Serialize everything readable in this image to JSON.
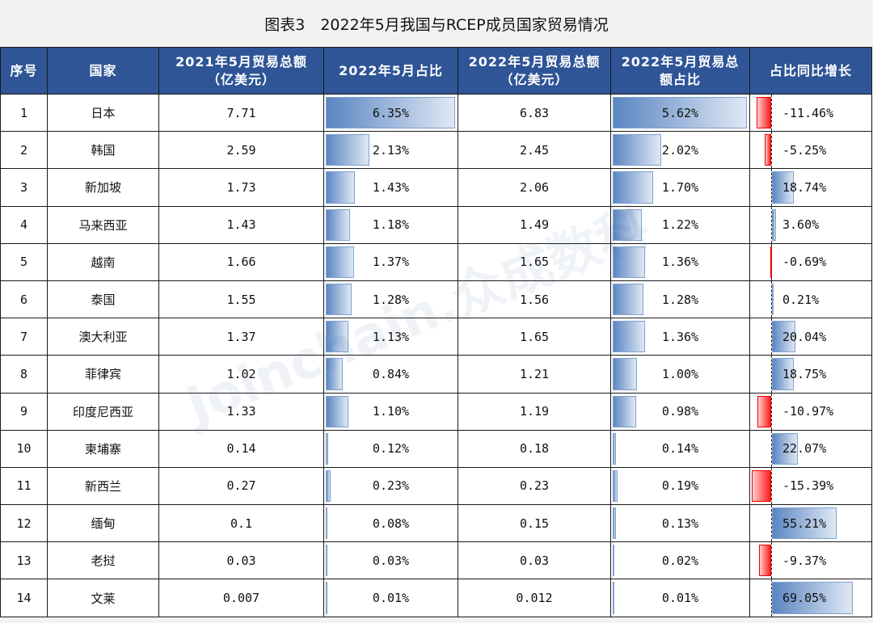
{
  "title": "图表3　2022年5月我国与RCEP成员国家贸易情况",
  "watermark": "Joinchain.众成数科",
  "chart_data": {
    "type": "table",
    "columns": [
      "序号",
      "国家",
      "2021年5月贸易总额（亿美元）",
      "2022年5月占比",
      "2022年5月贸易总额（亿美元）",
      "2022年5月贸易总额占比",
      "占比同比增长"
    ],
    "rows": [
      [
        "1",
        "日本",
        "7.71",
        "6.35%",
        "6.83",
        "5.62%",
        "-11.46%"
      ],
      [
        "2",
        "韩国",
        "2.59",
        "2.13%",
        "2.45",
        "2.02%",
        "-5.25%"
      ],
      [
        "3",
        "新加坡",
        "1.73",
        "1.43%",
        "2.06",
        "1.70%",
        "18.74%"
      ],
      [
        "4",
        "马来西亚",
        "1.43",
        "1.18%",
        "1.49",
        "1.22%",
        "3.60%"
      ],
      [
        "5",
        "越南",
        "1.66",
        "1.37%",
        "1.65",
        "1.36%",
        "-0.69%"
      ],
      [
        "6",
        "泰国",
        "1.55",
        "1.28%",
        "1.56",
        "1.28%",
        "0.21%"
      ],
      [
        "7",
        "澳大利亚",
        "1.37",
        "1.13%",
        "1.65",
        "1.36%",
        "20.04%"
      ],
      [
        "8",
        "菲律宾",
        "1.02",
        "0.84%",
        "1.21",
        "1.00%",
        "18.75%"
      ],
      [
        "9",
        "印度尼西亚",
        "1.33",
        "1.10%",
        "1.19",
        "0.98%",
        "-10.97%"
      ],
      [
        "10",
        "柬埔寨",
        "0.14",
        "0.12%",
        "0.18",
        "0.14%",
        "22.07%"
      ],
      [
        "11",
        "新西兰",
        "0.27",
        "0.23%",
        "0.23",
        "0.19%",
        "-15.39%"
      ],
      [
        "12",
        "缅甸",
        "0.1",
        "0.08%",
        "0.15",
        "0.13%",
        "55.21%"
      ],
      [
        "13",
        "老挝",
        "0.03",
        "0.03%",
        "0.03",
        "0.02%",
        "-9.37%"
      ],
      [
        "14",
        "文莱",
        "0.007",
        "0.01%",
        "0.012",
        "0.01%",
        "69.05%"
      ]
    ],
    "data_bar_columns": [
      3,
      5,
      6
    ],
    "colors": {
      "header": "#2f5597",
      "bar_positive": "#5b86c2",
      "bar_negative": "#ff1a1a"
    }
  }
}
